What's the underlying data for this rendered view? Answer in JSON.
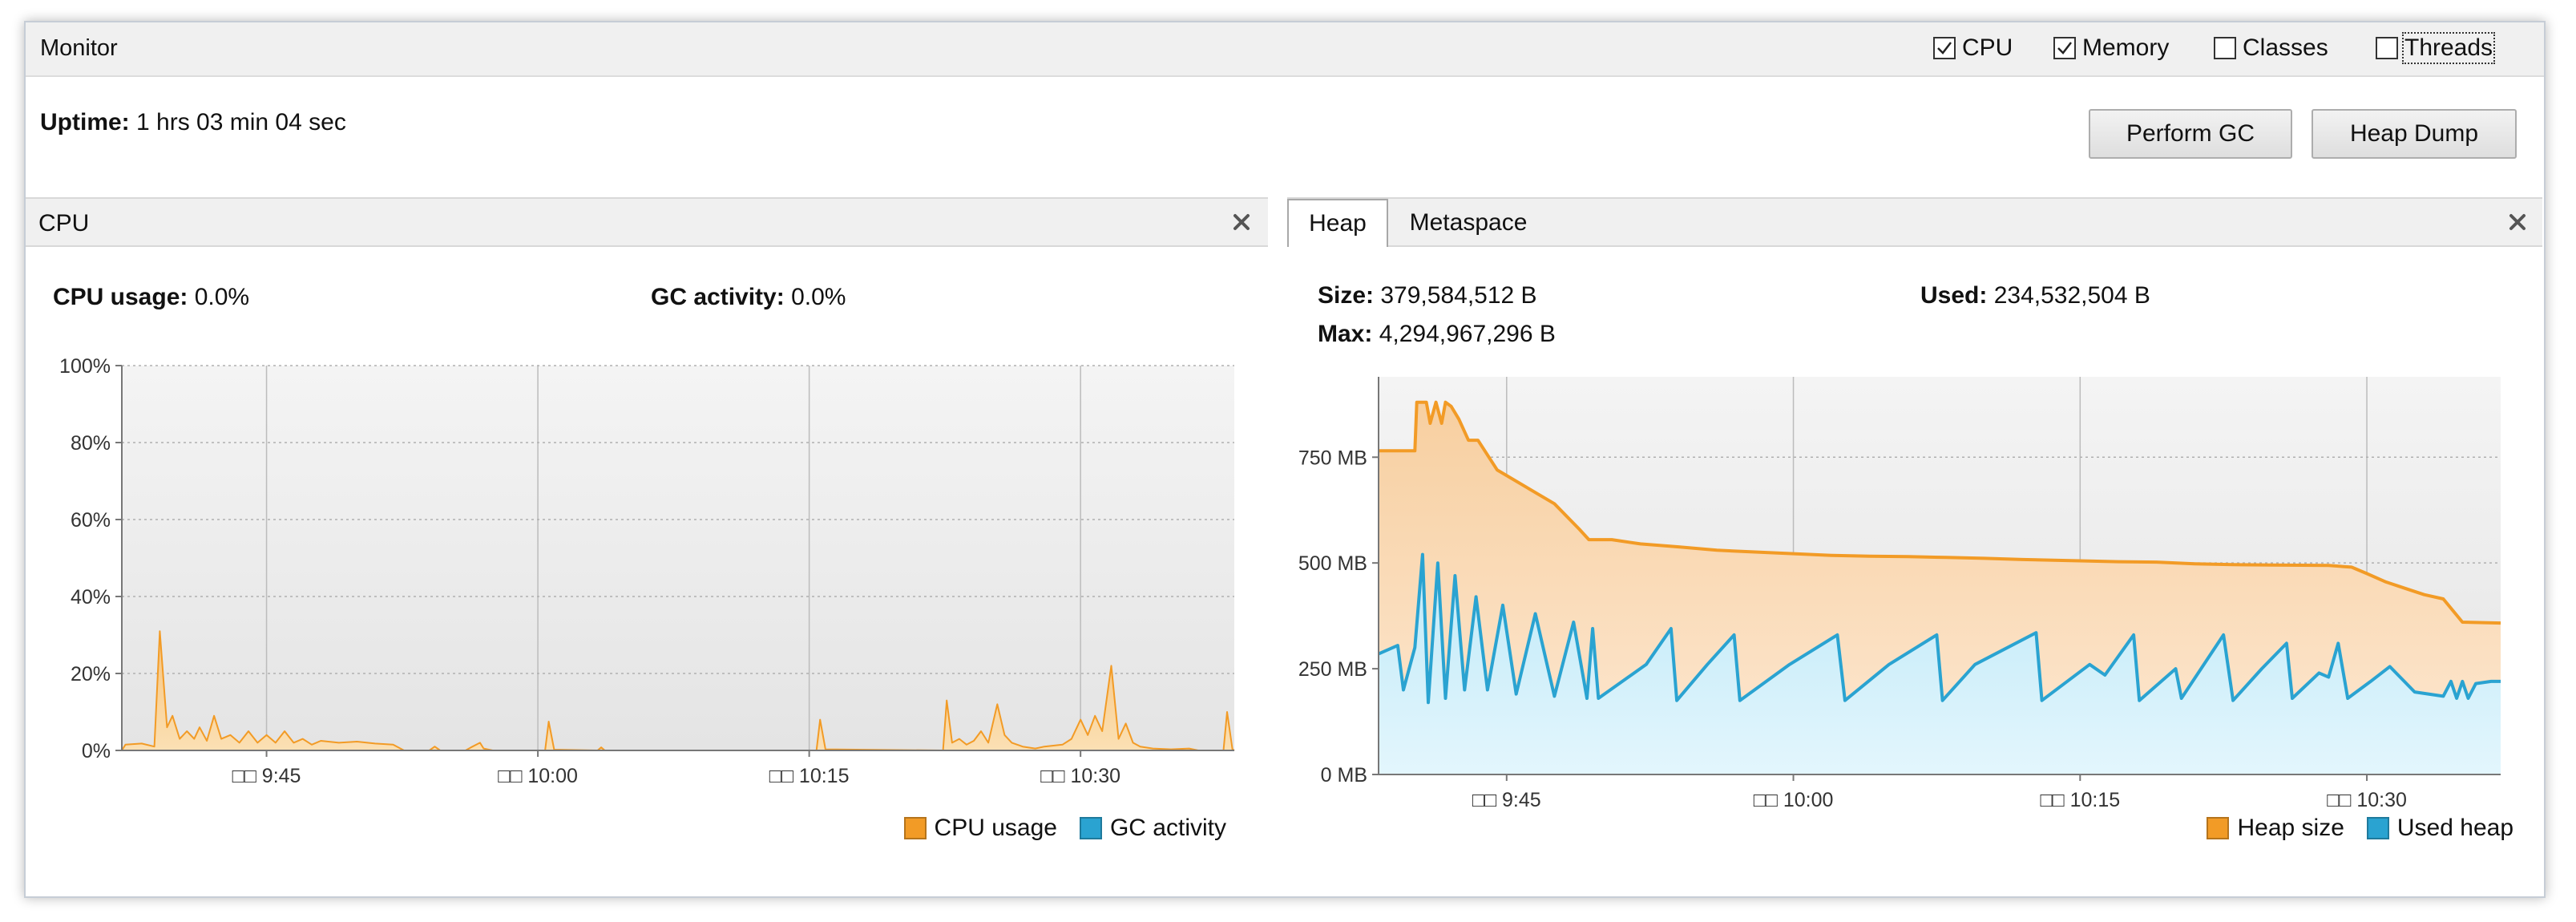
{
  "monitor": {
    "title": "Monitor",
    "options": [
      {
        "label": "CPU",
        "checked": true
      },
      {
        "label": "Memory",
        "checked": true
      },
      {
        "label": "Classes",
        "checked": false
      },
      {
        "label": "Threads",
        "checked": false
      }
    ],
    "uptime_label": "Uptime:",
    "uptime_value": "1 hrs 03 min 04 sec",
    "perform_gc_label": "Perform GC",
    "heap_dump_label": "Heap Dump"
  },
  "cpu_panel": {
    "title": "CPU",
    "cpu_usage_label": "CPU usage:",
    "cpu_usage_value": "0.0%",
    "gc_activity_label": "GC activity:",
    "gc_activity_value": "0.0%",
    "legend": [
      {
        "name": "CPU usage",
        "color": "#f29b26"
      },
      {
        "name": "GC activity",
        "color": "#2aa3d1"
      }
    ]
  },
  "memory_panel": {
    "tabs": [
      "Heap",
      "Metaspace"
    ],
    "active_tab": "Heap",
    "size_label": "Size:",
    "size_value": "379,584,512 B",
    "used_label": "Used:",
    "used_value": "234,532,504 B",
    "max_label": "Max:",
    "max_value": "4,294,967,296 B",
    "legend": [
      {
        "name": "Heap size",
        "color": "#f29b26"
      },
      {
        "name": "Used heap",
        "color": "#2aa3d1"
      }
    ]
  },
  "chart_data": [
    {
      "type": "area",
      "x_unit": "minutes after 9:30",
      "xlim": [
        7,
        68.5
      ],
      "x_ticks": [
        15,
        30,
        45,
        60
      ],
      "x_tick_labels": [
        "□□ 9:45",
        "□□ 10:00",
        "□□ 10:15",
        "□□ 10:30"
      ],
      "ylim": [
        0,
        100
      ],
      "y_ticks": [
        0,
        20,
        40,
        60,
        80,
        100
      ],
      "y_tick_labels": [
        "0%",
        "20%",
        "40%",
        "60%",
        "80%",
        "100%"
      ],
      "grid": true,
      "legend_position": "bottom-right",
      "series": [
        {
          "name": "CPU usage",
          "color": "#f29b26",
          "points": [
            [
              7,
              0
            ],
            [
              7.2,
              1.5
            ],
            [
              8.1,
              1.8
            ],
            [
              8.8,
              1
            ],
            [
              9.1,
              31
            ],
            [
              9.5,
              6
            ],
            [
              9.8,
              9
            ],
            [
              10.2,
              3
            ],
            [
              10.6,
              5
            ],
            [
              11.0,
              3
            ],
            [
              11.3,
              6
            ],
            [
              11.7,
              2.5
            ],
            [
              12.1,
              9
            ],
            [
              12.5,
              3
            ],
            [
              13.0,
              4
            ],
            [
              13.5,
              2
            ],
            [
              14.0,
              5
            ],
            [
              14.5,
              2
            ],
            [
              15.0,
              4
            ],
            [
              15.5,
              2
            ],
            [
              16.0,
              5
            ],
            [
              16.5,
              2
            ],
            [
              17.0,
              3
            ],
            [
              17.5,
              1.5
            ],
            [
              18,
              2.5
            ],
            [
              19,
              2
            ],
            [
              20,
              2.3
            ],
            [
              21,
              1.8
            ],
            [
              22,
              1.5
            ],
            [
              22.6,
              0
            ],
            [
              24,
              0
            ],
            [
              24.3,
              1
            ],
            [
              24.6,
              0
            ],
            [
              26,
              0
            ],
            [
              26.3,
              0.8
            ],
            [
              26.8,
              2
            ],
            [
              27.0,
              0.5
            ],
            [
              27.5,
              0
            ],
            [
              30.4,
              0
            ],
            [
              30.6,
              7.5
            ],
            [
              30.9,
              0.2
            ],
            [
              33.3,
              0
            ],
            [
              33.5,
              0.8
            ],
            [
              33.7,
              0
            ],
            [
              45.4,
              0
            ],
            [
              45.6,
              8
            ],
            [
              45.9,
              0.3
            ],
            [
              52.4,
              0
            ],
            [
              52.6,
              13
            ],
            [
              52.9,
              2
            ],
            [
              53.3,
              3
            ],
            [
              53.7,
              1.5
            ],
            [
              54.1,
              2.5
            ],
            [
              54.5,
              5
            ],
            [
              54.9,
              2
            ],
            [
              55.4,
              12
            ],
            [
              55.8,
              4
            ],
            [
              56.2,
              2
            ],
            [
              56.8,
              1
            ],
            [
              57.5,
              0.5
            ],
            [
              58.0,
              1
            ],
            [
              59.0,
              1.5
            ],
            [
              59.5,
              3
            ],
            [
              60.0,
              8
            ],
            [
              60.4,
              4
            ],
            [
              60.8,
              9
            ],
            [
              61.2,
              5
            ],
            [
              61.7,
              22
            ],
            [
              62.1,
              3
            ],
            [
              62.5,
              7
            ],
            [
              62.9,
              2
            ],
            [
              63.3,
              1
            ],
            [
              64,
              0.5
            ],
            [
              65,
              0.3
            ],
            [
              66,
              0.5
            ],
            [
              66.5,
              0
            ],
            [
              67.9,
              0
            ],
            [
              68.1,
              10
            ],
            [
              68.4,
              0.3
            ],
            [
              68.5,
              0
            ]
          ]
        },
        {
          "name": "GC activity",
          "color": "#2aa3d1",
          "points": [
            [
              7,
              0
            ],
            [
              68.5,
              0
            ]
          ]
        }
      ]
    },
    {
      "type": "area",
      "x_unit": "minutes after 9:30",
      "xlim": [
        8.3,
        67
      ],
      "x_ticks": [
        15,
        30,
        45,
        60
      ],
      "x_tick_labels": [
        "□□ 9:45",
        "□□ 10:00",
        "□□ 10:15",
        "□□ 10:30"
      ],
      "y_unit": "MB",
      "ylim": [
        0,
        940
      ],
      "y_ticks": [
        0,
        250,
        500,
        750
      ],
      "y_tick_labels": [
        "0 MB",
        "250 MB",
        "500 MB",
        "750 MB"
      ],
      "grid": true,
      "legend_position": "bottom-right",
      "series": [
        {
          "name": "Heap size",
          "color": "#f29b26",
          "points": [
            [
              8.3,
              765
            ],
            [
              10.2,
              765
            ],
            [
              10.3,
              880
            ],
            [
              10.8,
              880
            ],
            [
              11.0,
              830
            ],
            [
              11.3,
              880
            ],
            [
              11.6,
              830
            ],
            [
              11.8,
              880
            ],
            [
              12.1,
              870
            ],
            [
              12.5,
              840
            ],
            [
              13.0,
              790
            ],
            [
              13.5,
              790
            ],
            [
              14.5,
              720
            ],
            [
              16,
              680
            ],
            [
              17.5,
              640
            ],
            [
              18.8,
              580
            ],
            [
              19.3,
              555
            ],
            [
              20.5,
              555
            ],
            [
              22,
              545
            ],
            [
              24,
              538
            ],
            [
              26,
              530
            ],
            [
              28,
              526
            ],
            [
              30,
              522
            ],
            [
              32,
              518
            ],
            [
              34,
              516
            ],
            [
              36,
              515
            ],
            [
              38,
              513
            ],
            [
              40,
              511
            ],
            [
              42,
              508
            ],
            [
              45,
              505
            ],
            [
              47,
              503
            ],
            [
              49,
              502
            ],
            [
              51,
              498
            ],
            [
              53,
              496
            ],
            [
              55,
              495
            ],
            [
              58,
              494
            ],
            [
              59.2,
              490
            ],
            [
              60,
              475
            ],
            [
              61,
              455
            ],
            [
              62,
              440
            ],
            [
              63,
              425
            ],
            [
              64,
              415
            ],
            [
              65,
              360
            ],
            [
              67,
              358
            ]
          ]
        },
        {
          "name": "Used heap",
          "color": "#2aa3d1",
          "points": [
            [
              8.3,
              285
            ],
            [
              9.3,
              305
            ],
            [
              9.6,
              200
            ],
            [
              10.2,
              300
            ],
            [
              10.6,
              520
            ],
            [
              10.9,
              170
            ],
            [
              11.4,
              500
            ],
            [
              11.8,
              180
            ],
            [
              12.3,
              470
            ],
            [
              12.8,
              200
            ],
            [
              13.4,
              420
            ],
            [
              14.0,
              200
            ],
            [
              14.8,
              400
            ],
            [
              15.5,
              190
            ],
            [
              16.5,
              380
            ],
            [
              17.5,
              185
            ],
            [
              18.5,
              360
            ],
            [
              19.2,
              180
            ],
            [
              19.5,
              345
            ],
            [
              19.8,
              180
            ],
            [
              22.3,
              260
            ],
            [
              23.6,
              345
            ],
            [
              23.9,
              175
            ],
            [
              25.5,
              260
            ],
            [
              26.9,
              330
            ],
            [
              27.2,
              175
            ],
            [
              29.8,
              260
            ],
            [
              32.3,
              330
            ],
            [
              32.7,
              175
            ],
            [
              35.0,
              260
            ],
            [
              37.5,
              330
            ],
            [
              37.8,
              175
            ],
            [
              39.5,
              260
            ],
            [
              42.7,
              335
            ],
            [
              43.0,
              175
            ],
            [
              45.5,
              260
            ],
            [
              46.3,
              235
            ],
            [
              47.8,
              330
            ],
            [
              48.1,
              175
            ],
            [
              50.0,
              250
            ],
            [
              50.3,
              180
            ],
            [
              52.5,
              330
            ],
            [
              53.0,
              175
            ],
            [
              54.5,
              250
            ],
            [
              55.8,
              310
            ],
            [
              56.1,
              180
            ],
            [
              57.5,
              240
            ],
            [
              58.0,
              230
            ],
            [
              58.5,
              310
            ],
            [
              59.0,
              180
            ],
            [
              60.2,
              220
            ],
            [
              61.2,
              255
            ],
            [
              62.5,
              195
            ],
            [
              64,
              185
            ],
            [
              64.4,
              220
            ],
            [
              64.7,
              180
            ],
            [
              65.0,
              220
            ],
            [
              65.3,
              180
            ],
            [
              65.7,
              215
            ],
            [
              66.5,
              220
            ],
            [
              67,
              220
            ]
          ]
        }
      ]
    }
  ]
}
